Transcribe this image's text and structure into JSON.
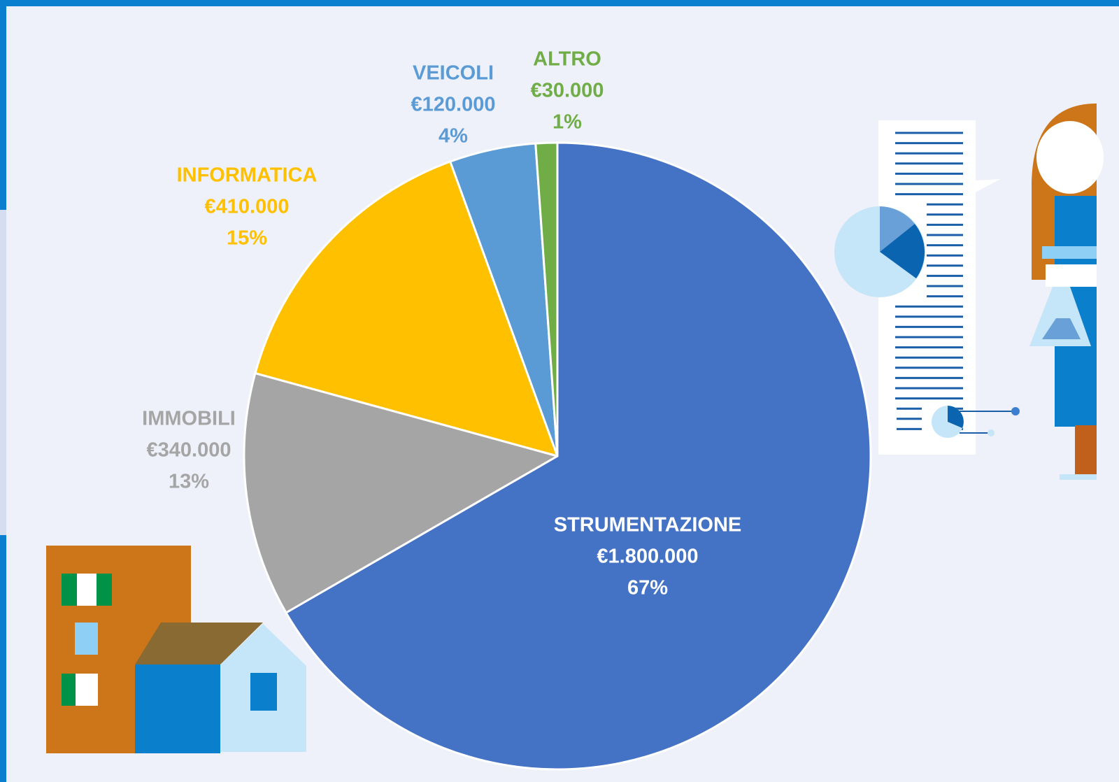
{
  "chart_data": {
    "type": "pie",
    "categories": [
      "STRUMENTAZIONE",
      "IMMOBILI",
      "INFORMATICA",
      "VEICOLI",
      "ALTRO"
    ],
    "values": [
      1800000,
      340000,
      410000,
      120000,
      30000
    ],
    "value_labels": [
      "€1.800.000",
      "€340.000",
      "€410.000",
      "€120.000",
      "€30.000"
    ],
    "percents": [
      67,
      13,
      15,
      4,
      1
    ],
    "percent_labels": [
      "67%",
      "13%",
      "15%",
      "4%",
      "1%"
    ],
    "colors": [
      "#4472c4",
      "#a5a5a5",
      "#ffc000",
      "#5b9bd5",
      "#70ad47"
    ],
    "label_colors": [
      "#ffffff",
      "#a5a5a5",
      "#ffc000",
      "#5b9bd5",
      "#70ad47"
    ]
  }
}
